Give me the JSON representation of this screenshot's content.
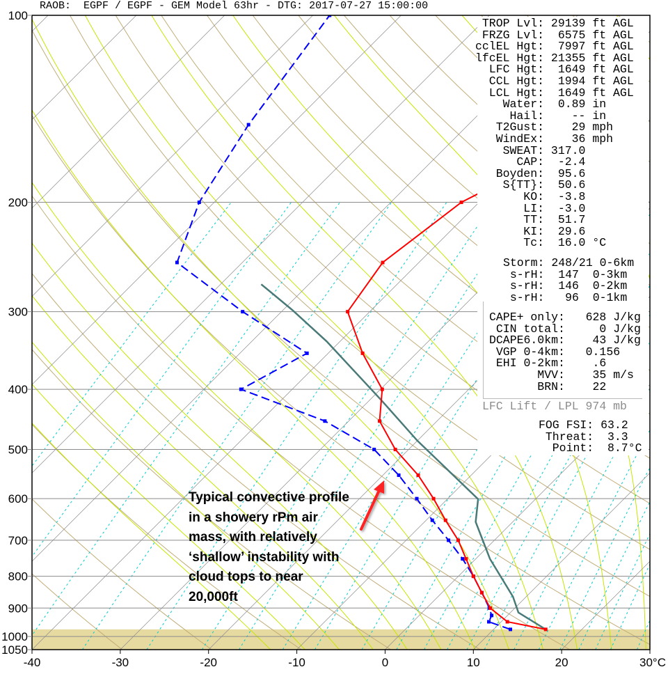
{
  "title": "RAOB:  EGPF / EGPF - GEM Model 63hr - DTG: 2017-07-27 15:00:00",
  "chart_data": {
    "type": "skew-t",
    "y_axis": {
      "scale": "log",
      "range": [
        1050,
        100
      ],
      "ticks": [
        100,
        200,
        300,
        400,
        500,
        600,
        700,
        800,
        900,
        1000,
        1050
      ],
      "tick_labels": [
        "100",
        "200",
        "300",
        "400",
        "500",
        "600",
        "700",
        "800",
        "900",
        "1000",
        "1050"
      ]
    },
    "x_axis": {
      "range": [
        -40,
        30
      ],
      "ticks": [
        -40,
        -30,
        -20,
        -10,
        0,
        10,
        20,
        30
      ],
      "tick_labels": [
        "-40",
        "-30",
        "-20",
        "-10",
        "0",
        "10",
        "20",
        "30°C"
      ]
    },
    "grid": true,
    "ground_pressure": 974,
    "temperature": {
      "color": "#ff0000",
      "points": [
        [
          974,
          15.9
        ],
        [
          947,
          10.7
        ],
        [
          900,
          7.2
        ],
        [
          850,
          4.5
        ],
        [
          800,
          1.7
        ],
        [
          750,
          -1.1
        ],
        [
          700,
          -4.1
        ],
        [
          650,
          -7.8
        ],
        [
          600,
          -11.6
        ],
        [
          550,
          -16.0
        ],
        [
          500,
          -21.5
        ],
        [
          450,
          -26.5
        ],
        [
          400,
          -29.8
        ],
        [
          350,
          -36.1
        ],
        [
          300,
          -42.5
        ],
        [
          250,
          -44.1
        ],
        [
          200,
          -42.0
        ],
        [
          190,
          -40.5
        ]
      ]
    },
    "dewpoint": {
      "color": "#0000ff",
      "points": [
        [
          974,
          11.9
        ],
        [
          947,
          8.6
        ],
        [
          925,
          8.2
        ],
        [
          900,
          7.1
        ],
        [
          850,
          4.5
        ],
        [
          800,
          1.7
        ],
        [
          750,
          -1.5
        ],
        [
          700,
          -5.2
        ],
        [
          650,
          -9.3
        ],
        [
          600,
          -13.5
        ],
        [
          550,
          -18.2
        ],
        [
          500,
          -23.9
        ],
        [
          450,
          -32.7
        ],
        [
          400,
          -45.8
        ],
        [
          350,
          -42.4
        ],
        [
          300,
          -54.4
        ],
        [
          250,
          -67.4
        ],
        [
          200,
          -71.7
        ],
        [
          150,
          -74.9
        ],
        [
          100,
          -78.1
        ]
      ]
    },
    "parcel": {
      "color": "#4a7a78",
      "points": [
        [
          974,
          15.9
        ],
        [
          915,
          10.9
        ],
        [
          863,
          8.5
        ],
        [
          750,
          1.6
        ],
        [
          654,
          -4.2
        ],
        [
          601,
          -6.5
        ],
        [
          484,
          -20.0
        ],
        [
          417,
          -28.6
        ],
        [
          335,
          -41.5
        ],
        [
          298,
          -49.0
        ],
        [
          271,
          -55.4
        ]
      ]
    },
    "background_colors": {
      "isotherm": "#8c8c8c",
      "dry_adiabat": "#c2ad78",
      "moist_adiabat": "#c6e600",
      "mixing_ratio": "#00cccc",
      "isobar": "#8c8c8c",
      "ground": "#e6daa0"
    }
  },
  "indices": [
    {
      "label": "TROP Lvl:",
      "value": "29139",
      "unit": "ft AGL"
    },
    {
      "label": "FRZG Lvl:",
      "value": "6575",
      "unit": "ft AGL"
    },
    {
      "label": "cclEL Hgt:",
      "value": "7997",
      "unit": "ft AGL"
    },
    {
      "label": "lfcEL Hgt:",
      "value": "21355",
      "unit": "ft AGL"
    },
    {
      "label": "LFC Hgt:",
      "value": "1649",
      "unit": "ft AGL"
    },
    {
      "label": "CCL Hgt:",
      "value": "1994",
      "unit": "ft AGL"
    },
    {
      "label": "LCL Hgt:",
      "value": "1649",
      "unit": "ft AGL"
    },
    {
      "label": "Water:",
      "value": "0.89",
      "unit": "in"
    },
    {
      "label": "Hail:",
      "value": "--",
      "unit": "in"
    },
    {
      "label": "T2Gust:",
      "value": "29",
      "unit": "mph"
    },
    {
      "label": "WindEx:",
      "value": "36",
      "unit": "mph"
    },
    {
      "label": "SWEAT:",
      "value": "317.0",
      "unit": ""
    },
    {
      "label": "CAP:",
      "value": "-2.4",
      "unit": ""
    },
    {
      "label": "Boyden:",
      "value": "95.6",
      "unit": ""
    },
    {
      "label": "S{TT}:",
      "value": "50.6",
      "unit": ""
    },
    {
      "label": "KO:",
      "value": "-3.8",
      "unit": ""
    },
    {
      "label": "LI:",
      "value": "-3.0",
      "unit": ""
    },
    {
      "label": "TT:",
      "value": "51.7",
      "unit": ""
    },
    {
      "label": "KI:",
      "value": "29.6",
      "unit": ""
    },
    {
      "label": "Tc:",
      "value": "16.0",
      "unit": "°C"
    }
  ],
  "storm": [
    {
      "label": "Storm:",
      "value": "248/21",
      "unit": "0-6km"
    },
    {
      "label": "s-rH:",
      "value": "147",
      "unit": "0-3km"
    },
    {
      "label": "s-rH:",
      "value": "146",
      "unit": "0-2km"
    },
    {
      "label": "s-rH:",
      "value": "96",
      "unit": "0-1km"
    }
  ],
  "cape": [
    {
      "label": "CAPE+ only:",
      "value": "628",
      "unit": "J/kg"
    },
    {
      "label": "CIN total:",
      "value": "0",
      "unit": "J/kg"
    },
    {
      "label": "DCAPE6.0km:",
      "value": "43",
      "unit": "J/kg"
    },
    {
      "label": "VGP 0-4km:",
      "value": "0.156",
      "unit": ""
    },
    {
      "label": "EHI 0-2km:",
      "value": ".6",
      "unit": ""
    },
    {
      "label": "MVV:",
      "value": "35",
      "unit": "m/s"
    },
    {
      "label": "BRN:",
      "value": "22",
      "unit": ""
    }
  ],
  "lift_label": "LFC Lift / LPL 974 mb",
  "fog": [
    {
      "label": "FOG FSI:",
      "value": "63.2",
      "unit": ""
    },
    {
      "label": "Threat:",
      "value": "3.3",
      "unit": ""
    },
    {
      "label": "Point:",
      "value": "8.7",
      "unit": "°C"
    }
  ],
  "annotation": {
    "lines": [
      "Typical convective profile",
      "in a showery rPm air",
      "mass, with relatively",
      "‘shallow’ instability with",
      "cloud tops to near",
      "20,000ft"
    ],
    "arrow_color": "#ff2020"
  }
}
